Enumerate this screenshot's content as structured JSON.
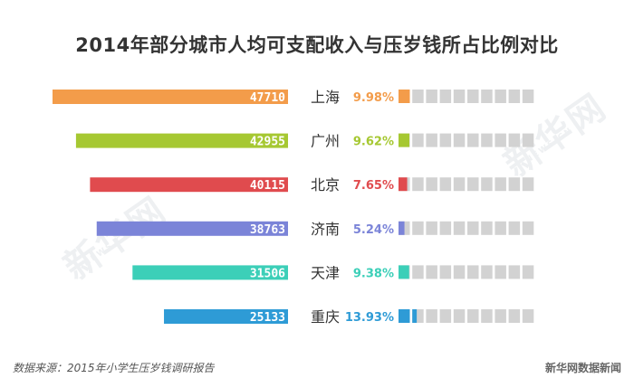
{
  "title": "2014年部分城市人均可支配收入与压岁钱所占比例对比",
  "chart_data": {
    "type": "bar",
    "title": "2014年部分城市人均可支配收入与压岁钱所占比例对比",
    "categories": [
      "上海",
      "广州",
      "北京",
      "济南",
      "天津",
      "重庆"
    ],
    "series": [
      {
        "values": [
          47710,
          42955,
          40115,
          38763,
          31506,
          25133
        ]
      },
      {
        "values": [
          9.98,
          9.62,
          7.65,
          5.24,
          9.38,
          13.93
        ]
      }
    ],
    "value_labels": [
      [
        "47710",
        "42955",
        "40115",
        "38763",
        "31506",
        "25133"
      ],
      [
        "9.98%",
        "9.62%",
        "7.65%",
        "5.24%",
        "9.38%",
        "13.93%"
      ]
    ],
    "colors": [
      "#f39c4a",
      "#a6c832",
      "#e04b4e",
      "#7b84d8",
      "#3ccfb8",
      "#2e9bd6"
    ],
    "segment_color": "#d2d2d2",
    "segments": 10,
    "segment_unit_percent": 10,
    "orientation": "horizontal",
    "grid": false,
    "legend": "none"
  },
  "footer": {
    "source": "数据来源：2015年小学生压岁钱调研报告",
    "brand": "新华网数据新闻"
  },
  "watermark": {
    "text": "新华网",
    "sub": "NEWS.CN"
  }
}
